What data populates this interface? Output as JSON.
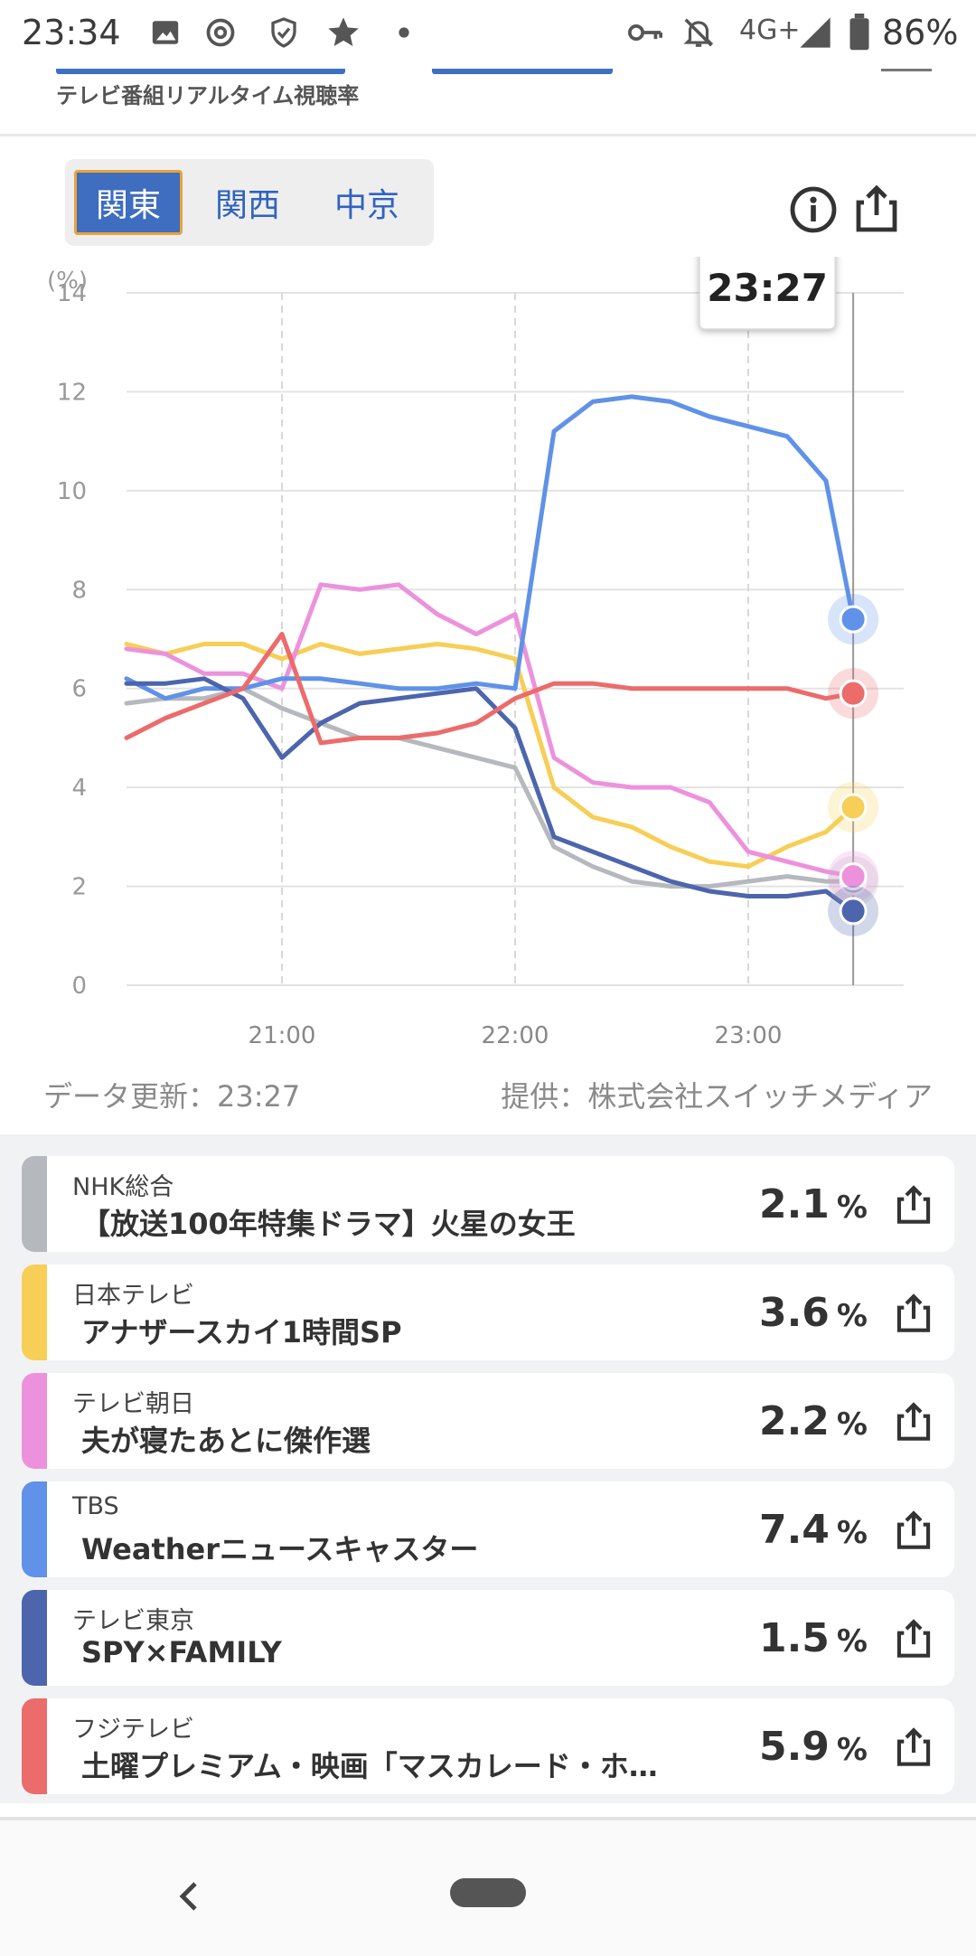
{
  "status_bar": {
    "time": "23:34",
    "network": "4G+",
    "battery": "86%",
    "icons": [
      "image-icon",
      "threads-icon",
      "shield-icon",
      "star-icon",
      "dot-icon",
      "key-icon",
      "bell-off-icon",
      "signal-icon",
      "battery-icon"
    ]
  },
  "header": {
    "subtitle": "テレビ番組リアルタイム視聴率"
  },
  "region_tabs": [
    {
      "label": "関東",
      "active": true
    },
    {
      "label": "関西",
      "active": false
    },
    {
      "label": "中京",
      "active": false
    }
  ],
  "toolbar_icons": [
    "info-icon",
    "share-icon"
  ],
  "chart_data": {
    "type": "line",
    "ylabel": "(%)",
    "ylim": [
      0,
      14
    ],
    "yticks": [
      "0",
      "2",
      "4",
      "6",
      "8",
      "10",
      "12",
      "14"
    ],
    "xlim": [
      "20:20",
      "23:40"
    ],
    "xticks": [
      "21:00",
      "22:00",
      "23:00"
    ],
    "cursor_label": "23:27",
    "grid": true,
    "x": [
      "20:20",
      "20:30",
      "20:40",
      "20:50",
      "21:00",
      "21:10",
      "21:20",
      "21:30",
      "21:40",
      "21:50",
      "22:00",
      "22:10",
      "22:20",
      "22:30",
      "22:40",
      "22:50",
      "23:00",
      "23:10",
      "23:20",
      "23:27"
    ],
    "series": [
      {
        "name": "NHK総合",
        "color": "#b5b8bd",
        "values": [
          5.7,
          5.8,
          5.8,
          6.0,
          5.6,
          5.3,
          5.0,
          5.0,
          4.8,
          4.6,
          4.4,
          2.8,
          2.4,
          2.1,
          2.0,
          2.0,
          2.1,
          2.2,
          2.1,
          2.1
        ]
      },
      {
        "name": "日本テレビ",
        "color": "#f7ce56",
        "values": [
          6.9,
          6.7,
          6.9,
          6.9,
          6.6,
          6.9,
          6.7,
          6.8,
          6.9,
          6.8,
          6.6,
          4.0,
          3.4,
          3.2,
          2.8,
          2.5,
          2.4,
          2.8,
          3.1,
          3.6
        ]
      },
      {
        "name": "テレビ朝日",
        "color": "#ec92dc",
        "values": [
          6.8,
          6.7,
          6.3,
          6.3,
          6.0,
          8.1,
          8.0,
          8.1,
          7.5,
          7.1,
          7.5,
          4.6,
          4.1,
          4.0,
          4.0,
          3.7,
          2.7,
          2.5,
          2.3,
          2.2
        ]
      },
      {
        "name": "TBS",
        "color": "#5f92e8",
        "values": [
          6.2,
          5.8,
          6.0,
          6.0,
          6.2,
          6.2,
          6.1,
          6.0,
          6.0,
          6.1,
          6.0,
          11.2,
          11.8,
          11.9,
          11.8,
          11.5,
          11.3,
          11.1,
          10.2,
          7.4
        ]
      },
      {
        "name": "テレビ東京",
        "color": "#4c65ad",
        "values": [
          6.1,
          6.1,
          6.2,
          5.8,
          4.6,
          5.3,
          5.7,
          5.8,
          5.9,
          6.0,
          5.2,
          3.0,
          2.7,
          2.4,
          2.1,
          1.9,
          1.8,
          1.8,
          1.9,
          1.5
        ]
      },
      {
        "name": "フジテレビ",
        "color": "#ec6b6b",
        "values": [
          5.0,
          5.4,
          5.7,
          6.0,
          7.1,
          4.9,
          5.0,
          5.0,
          5.1,
          5.3,
          5.8,
          6.1,
          6.1,
          6.0,
          6.0,
          6.0,
          6.0,
          6.0,
          5.8,
          5.9
        ]
      }
    ],
    "end_values": [
      2.1,
      3.6,
      2.2,
      7.4,
      1.5,
      5.9
    ]
  },
  "footer": {
    "updated": "データ更新：23:27",
    "provider": "提供：株式会社スイッチメディア"
  },
  "ratings": [
    {
      "channel": "NHK総合",
      "program": "【放送100年特集ドラマ】火星の女王",
      "value": "2.1",
      "unit": "%",
      "color": "#b5b8bd"
    },
    {
      "channel": "日本テレビ",
      "program": "アナザースカイ1時間SP",
      "value": "3.6",
      "unit": "%",
      "color": "#f7ce56"
    },
    {
      "channel": "テレビ朝日",
      "program": "夫が寝たあとに傑作選",
      "value": "2.2",
      "unit": "%",
      "color": "#ec92dc"
    },
    {
      "channel": "TBS",
      "program": "Weatherニュースキャスター",
      "value": "7.4",
      "unit": "%",
      "color": "#5f92e8"
    },
    {
      "channel": "テレビ東京",
      "program": "SPY×FAMILY",
      "value": "1.5",
      "unit": "%",
      "color": "#4c65ad"
    },
    {
      "channel": "フジテレビ",
      "program": "土曜プレミアム・映画「マスカレード・ホ…",
      "value": "5.9",
      "unit": "%",
      "color": "#ec6b6b"
    }
  ]
}
